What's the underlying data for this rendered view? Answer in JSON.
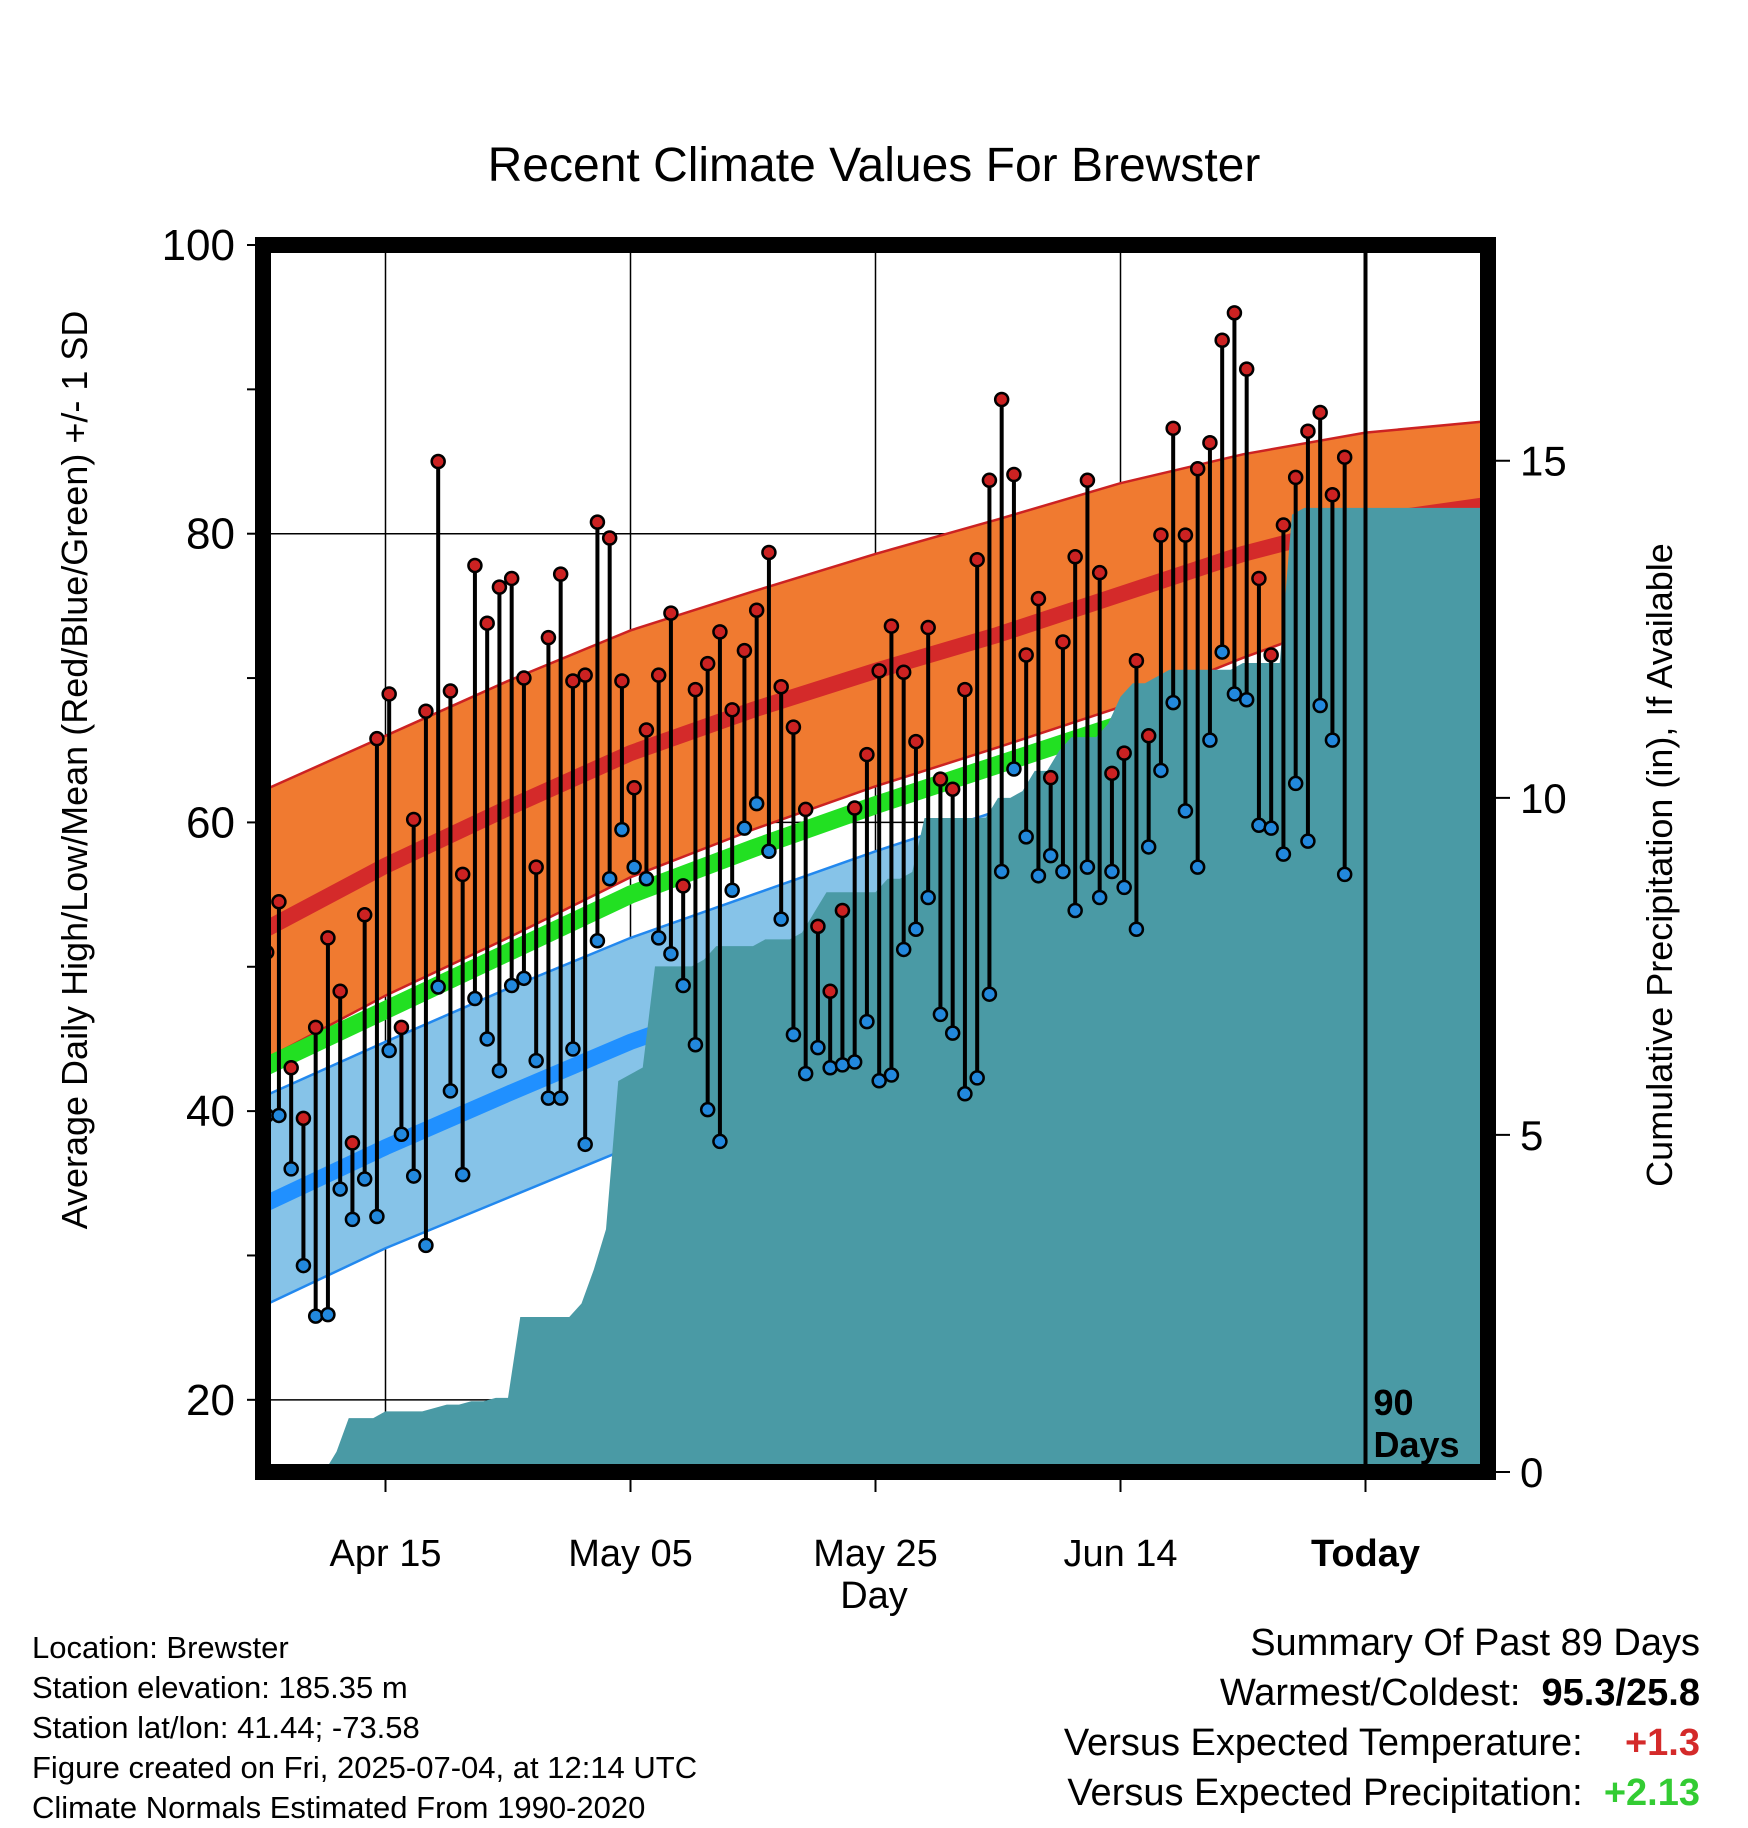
{
  "chart_data": {
    "type": "line",
    "title": "Recent Climate Values For Brewster",
    "xlabel": "Day",
    "ylabel": "Average Daily High/Low/Mean (Red/Blue/Green) +/- 1 SD",
    "y2label": "Cumulative Precipitation (in), If Available",
    "ylim": [
      15,
      100
    ],
    "y2lim": [
      0,
      18.2
    ],
    "y_ticks": [
      20,
      40,
      60,
      80,
      100
    ],
    "y2_ticks": [
      0,
      5,
      10,
      15
    ],
    "x_ticks": [
      {
        "day": 10,
        "label": "Apr 15"
      },
      {
        "day": 30,
        "label": "May 05"
      },
      {
        "day": 50,
        "label": "May 25"
      },
      {
        "day": 70,
        "label": "Jun 14"
      },
      {
        "day": 90,
        "label": "Today"
      }
    ],
    "x_range": [
      0,
      100
    ],
    "today_marker": {
      "day": 90,
      "label_line1": "90",
      "label_line2": "Days"
    },
    "normals": {
      "days": [
        0,
        10,
        20,
        30,
        40,
        50,
        60,
        70,
        80,
        90,
        100
      ],
      "high_mean": [
        52.5,
        57.0,
        61.0,
        64.8,
        67.8,
        70.5,
        73.0,
        75.8,
        78.6,
        80.8,
        82.0
      ],
      "high_upper": [
        62.2,
        66.0,
        69.8,
        73.3,
        76.0,
        78.6,
        81.0,
        83.5,
        85.5,
        87.0,
        87.8
      ],
      "high_lower": [
        43.5,
        48.0,
        52.0,
        56.2,
        59.5,
        62.5,
        65.2,
        68.0,
        71.4,
        74.5,
        75.8
      ],
      "mean": [
        43.0,
        47.0,
        51.0,
        55.0,
        58.2,
        61.2,
        64.0,
        66.8,
        69.6,
        71.8,
        72.7
      ],
      "low_mean": [
        33.5,
        37.5,
        41.2,
        44.8,
        47.8,
        50.5,
        53.5,
        56.5,
        59.5,
        62.0,
        63.2
      ],
      "low_upper": [
        41.0,
        44.8,
        48.5,
        52.0,
        55.0,
        58.0,
        60.8,
        63.5,
        66.0,
        67.8,
        68.5
      ],
      "low_lower": [
        26.5,
        30.5,
        34.0,
        37.5,
        40.6,
        43.5,
        46.5,
        49.5,
        52.5,
        56.0,
        57.8
      ]
    },
    "series": [
      {
        "name": "High",
        "color": "#cc2222",
        "values": [
          51.0,
          54.5,
          43.0,
          39.5,
          45.8,
          52.0,
          48.3,
          37.8,
          53.6,
          65.8,
          68.9,
          45.8,
          60.2,
          67.7,
          85.0,
          69.1,
          56.4,
          77.8,
          73.8,
          76.3,
          76.9,
          70.0,
          56.9,
          72.8,
          77.2,
          69.8,
          70.2,
          80.8,
          79.7,
          69.8,
          62.4,
          66.4,
          70.2,
          74.5,
          55.6,
          69.2,
          71.0,
          73.2,
          67.8,
          71.9,
          74.7,
          78.7,
          69.4,
          66.6,
          60.9,
          52.8,
          48.3,
          53.9,
          61.0,
          64.7,
          70.5,
          73.6,
          70.4,
          65.6,
          73.5,
          63.0,
          62.3,
          69.2,
          78.2,
          83.7,
          89.3,
          84.1,
          71.6,
          75.5,
          63.1,
          72.5,
          78.4,
          83.7,
          77.3,
          63.4,
          64.8,
          71.2,
          66.0,
          79.9,
          87.3,
          79.9,
          84.5,
          86.3,
          93.4,
          95.3,
          91.4,
          76.9,
          71.6,
          80.6,
          83.9,
          87.1,
          88.4,
          82.7,
          85.3
        ]
      },
      {
        "name": "Low",
        "color": "#2288dd",
        "values": [
          39.7,
          39.7,
          36.0,
          29.3,
          25.8,
          25.9,
          34.6,
          32.5,
          35.3,
          32.7,
          44.2,
          38.4,
          35.5,
          30.7,
          48.6,
          41.4,
          35.6,
          47.8,
          45.0,
          42.8,
          48.7,
          49.2,
          43.5,
          40.9,
          40.9,
          44.3,
          37.7,
          51.8,
          56.1,
          59.5,
          56.9,
          56.1,
          52.0,
          50.9,
          48.7,
          44.6,
          40.1,
          37.9,
          55.3,
          59.6,
          61.3,
          58.0,
          53.3,
          45.3,
          42.6,
          44.4,
          43.0,
          43.2,
          43.4,
          46.2,
          42.1,
          42.5,
          51.2,
          52.6,
          54.8,
          46.7,
          45.4,
          41.2,
          42.3,
          48.1,
          56.6,
          63.7,
          59.0,
          56.3,
          57.7,
          56.6,
          53.9,
          56.9,
          54.8,
          56.6,
          55.5,
          52.6,
          58.3,
          63.6,
          68.3,
          60.8,
          56.9,
          65.7,
          71.8,
          68.9,
          68.5,
          59.8,
          59.6,
          57.8,
          62.7,
          58.7,
          68.1,
          65.7,
          56.4
        ]
      }
    ],
    "precipitation": {
      "color": "#4a9aa5",
      "days": [
        4,
        5,
        6,
        7,
        8,
        9,
        10,
        11,
        12,
        13,
        14,
        15,
        16,
        17,
        18,
        19,
        20,
        21,
        22,
        23,
        24,
        25,
        26,
        27,
        28,
        29,
        30,
        31,
        32,
        33,
        34,
        35,
        36,
        37,
        38,
        39,
        40,
        41,
        42,
        43,
        44,
        45,
        46,
        47,
        48,
        49,
        50,
        51,
        52,
        53,
        54,
        55,
        56,
        57,
        58,
        59,
        60,
        61,
        62,
        63,
        64,
        65,
        66,
        67,
        68,
        69,
        70,
        71,
        72,
        73,
        74,
        75,
        76,
        77,
        78,
        79,
        80,
        81,
        82,
        83,
        84,
        85,
        86,
        87,
        88,
        89,
        90,
        100
      ],
      "values": [
        0.0,
        0.0,
        0.3,
        0.8,
        0.8,
        0.8,
        0.9,
        0.9,
        0.9,
        0.9,
        0.95,
        1.0,
        1.0,
        1.05,
        1.05,
        1.1,
        1.1,
        2.3,
        2.3,
        2.3,
        2.3,
        2.3,
        2.5,
        3.0,
        3.6,
        5.8,
        5.9,
        6.0,
        7.5,
        7.5,
        7.5,
        7.5,
        7.6,
        7.8,
        7.8,
        7.8,
        7.8,
        7.9,
        7.9,
        7.9,
        8.0,
        8.3,
        8.6,
        8.6,
        8.6,
        8.6,
        8.6,
        8.8,
        8.8,
        8.9,
        9.7,
        9.7,
        9.7,
        9.7,
        9.7,
        9.7,
        10.0,
        10.0,
        10.1,
        10.4,
        10.4,
        10.7,
        10.9,
        10.9,
        10.9,
        11.1,
        11.5,
        11.7,
        11.7,
        11.8,
        11.9,
        11.9,
        11.9,
        11.9,
        11.9,
        11.9,
        12.0,
        12.0,
        12.0,
        12.0,
        14.2,
        14.3,
        14.3,
        14.3,
        14.3,
        14.3,
        14.3,
        14.3
      ]
    }
  },
  "info": {
    "location": "Location: Brewster",
    "elevation": "Station elevation: 185.35 m",
    "latlon": "Station lat/lon: 41.44; -73.58",
    "created": "Figure created on Fri, 2025-07-04, at 12:14 UTC",
    "normals": "Climate Normals Estimated From 1990-2020"
  },
  "summary": {
    "heading": "Summary Of Past 89 Days",
    "warm_cold_label": "Warmest/Coldest:",
    "warm_cold_value": "95.3/25.8",
    "temp_label": "Versus Expected Temperature:",
    "temp_value": "+1.3",
    "precip_label": "Versus Expected Precipitation:",
    "precip_value": "+2.13"
  }
}
